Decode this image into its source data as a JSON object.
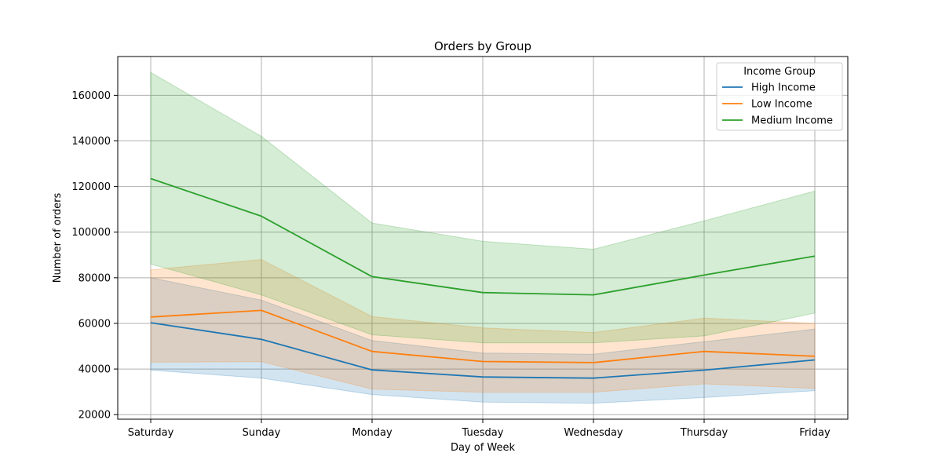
{
  "chart_data": {
    "type": "line",
    "title": "Orders by Group",
    "xlabel": "Day of Week",
    "ylabel": "Number of orders",
    "categories": [
      "Saturday",
      "Sunday",
      "Monday",
      "Tuesday",
      "Wednesday",
      "Thursday",
      "Friday"
    ],
    "ylim": [
      18000,
      177000
    ],
    "yticks": [
      20000,
      40000,
      60000,
      80000,
      100000,
      120000,
      140000,
      160000
    ],
    "grid": true,
    "legend": {
      "title": "Income Group",
      "position": "top-right"
    },
    "series": [
      {
        "name": "High Income",
        "color": "#1f77b4",
        "values": [
          60300,
          53000,
          39600,
          36500,
          36000,
          39500,
          44000
        ],
        "lower": [
          39500,
          36000,
          28800,
          25500,
          25000,
          27500,
          30500
        ],
        "upper": [
          80000,
          70200,
          52500,
          47000,
          46500,
          52000,
          57500
        ]
      },
      {
        "name": "Low Income",
        "color": "#ff7f0e",
        "values": [
          62800,
          65700,
          47700,
          43300,
          42800,
          47700,
          45600
        ],
        "lower": [
          43000,
          43200,
          31200,
          29800,
          29800,
          33500,
          31500
        ],
        "upper": [
          83500,
          88000,
          63000,
          58000,
          56000,
          62300,
          60000
        ]
      },
      {
        "name": "Medium Income",
        "color": "#2ca02c",
        "values": [
          123500,
          107000,
          80500,
          73500,
          72500,
          81200,
          89500
        ],
        "lower": [
          86000,
          72500,
          55000,
          51500,
          51500,
          54500,
          64500
        ],
        "upper": [
          170000,
          142000,
          104000,
          96000,
          92500,
          105000,
          118000
        ]
      }
    ]
  }
}
